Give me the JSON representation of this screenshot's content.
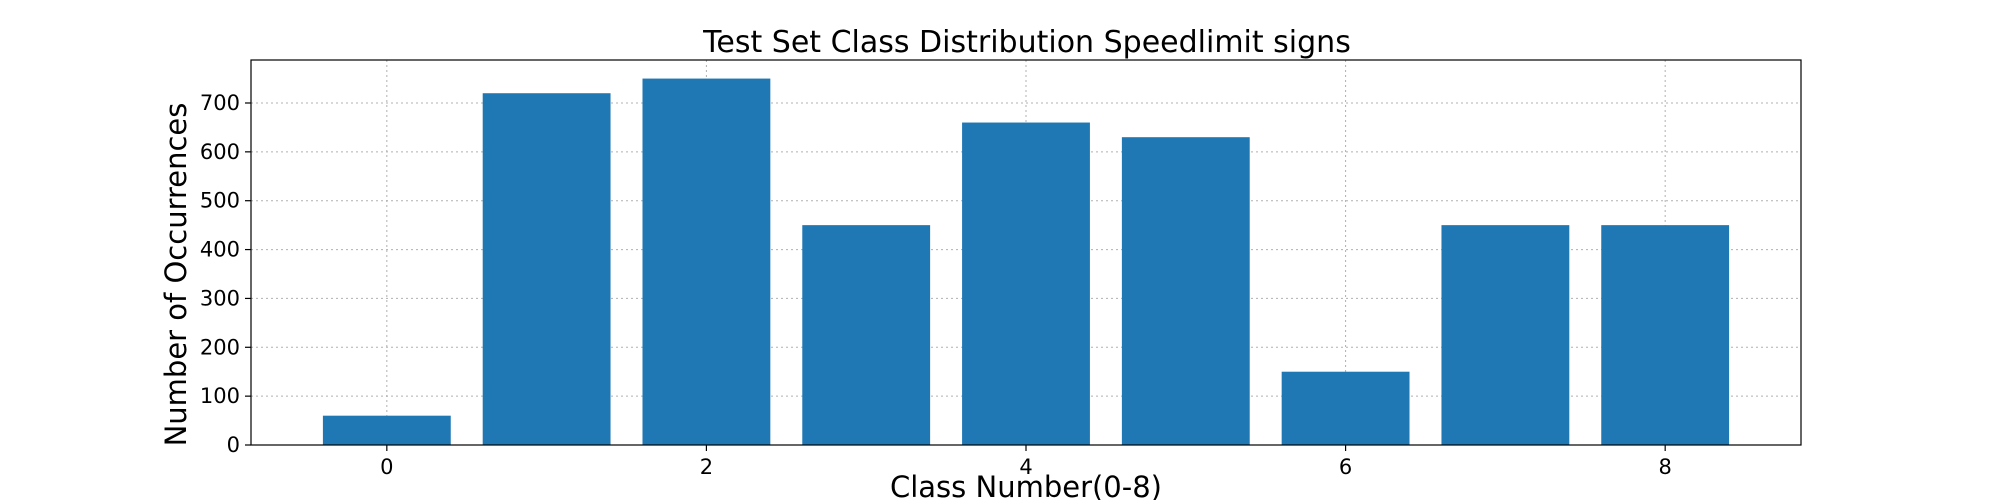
{
  "chart_data": {
    "type": "bar",
    "title": "Test Set Class Distribution Speedlimit signs",
    "xlabel": "Class Number(0-8)",
    "ylabel": "Number of Occurrences",
    "categories": [
      0,
      1,
      2,
      3,
      4,
      5,
      6,
      7,
      8
    ],
    "values": [
      60,
      720,
      750,
      450,
      660,
      630,
      150,
      450,
      450
    ],
    "xticks": [
      0,
      2,
      4,
      6,
      8
    ],
    "yticks": [
      0,
      100,
      200,
      300,
      400,
      500,
      600,
      700
    ],
    "xlim": [
      -0.85,
      8.85
    ],
    "ylim": [
      0,
      788
    ],
    "grid": true,
    "bar_color": "#1f77b4"
  }
}
